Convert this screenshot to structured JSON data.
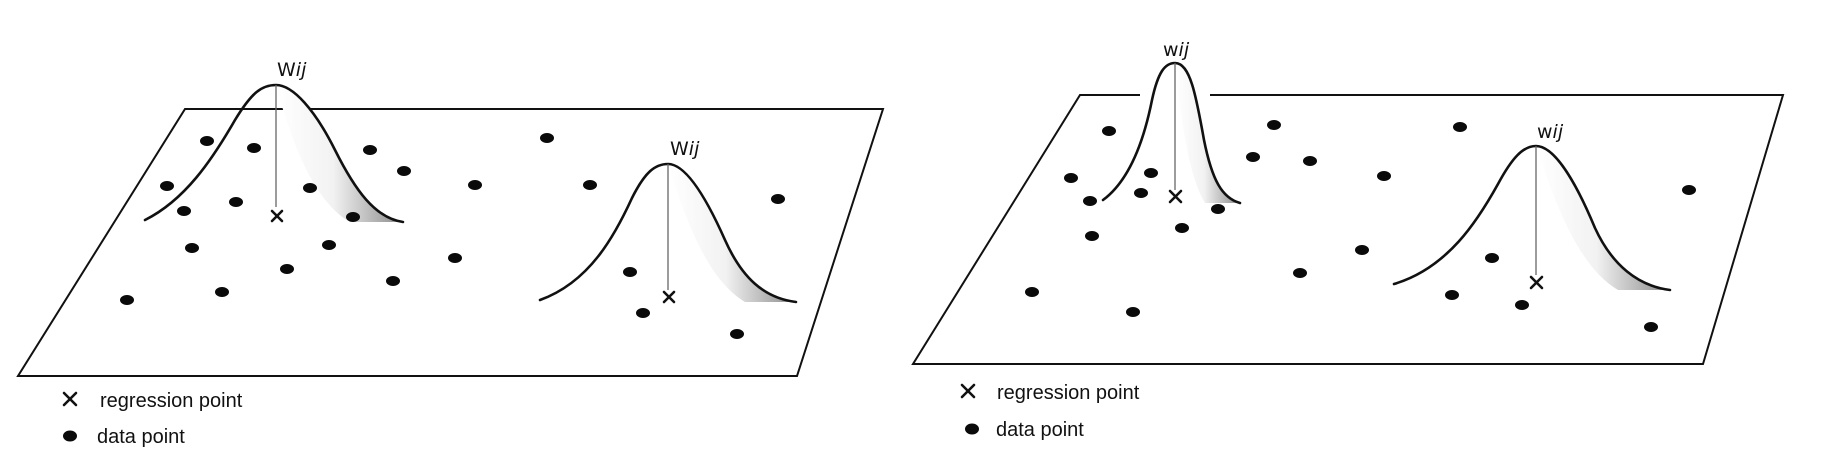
{
  "panels": [
    {
      "kernels": [
        {
          "label_main": "W",
          "label_sub": "ij"
        },
        {
          "label_main": "W",
          "label_sub": "ij"
        }
      ],
      "legend": {
        "regression_point": "regression point",
        "data_point": "data point"
      }
    },
    {
      "kernels": [
        {
          "label_main": "w",
          "label_sub": "ij"
        },
        {
          "label_main": "w",
          "label_sub": "ij"
        }
      ],
      "legend": {
        "regression_point": "regression point",
        "data_point": "data point"
      }
    }
  ],
  "colors": {
    "ink": "#111111",
    "shade_dark": "#8a8a8a",
    "shade_light": "#ffffff"
  }
}
